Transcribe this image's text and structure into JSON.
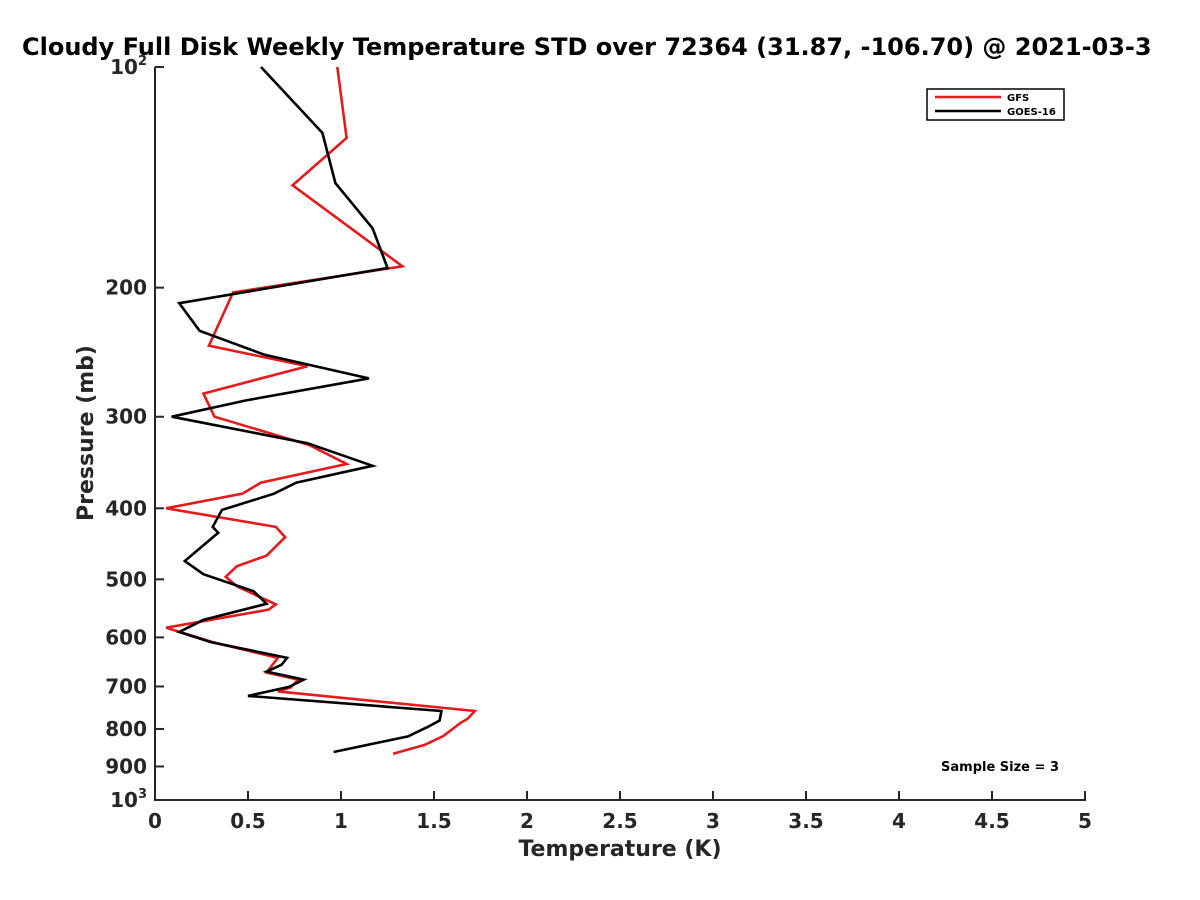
{
  "chart_data": {
    "type": "line",
    "title": "Cloudy Full Disk Weekly Temperature STD over 72364 (31.87, -106.70) @ 2021-03-3",
    "xlabel": "Temperature (K)",
    "ylabel": "Pressure (mb)",
    "xlim": [
      0,
      5
    ],
    "ylim": [
      100,
      1000
    ],
    "y_scale": "log",
    "y_reversed": true,
    "x_ticks": [
      0,
      0.5,
      1,
      1.5,
      2,
      2.5,
      3,
      3.5,
      4,
      4.5,
      5
    ],
    "x_tick_labels": [
      "0",
      "0.5",
      "1",
      "1.5",
      "2",
      "2.5",
      "3",
      "3.5",
      "4",
      "4.5",
      "5"
    ],
    "y_ticks": [
      {
        "value": 100,
        "base": "10",
        "exp": "2",
        "label": ""
      },
      {
        "value": 200,
        "label": "200"
      },
      {
        "value": 300,
        "label": "300"
      },
      {
        "value": 400,
        "label": "400"
      },
      {
        "value": 500,
        "label": "500"
      },
      {
        "value": 600,
        "label": "600"
      },
      {
        "value": 700,
        "label": "700"
      },
      {
        "value": 800,
        "label": "800"
      },
      {
        "value": 900,
        "label": "900"
      },
      {
        "value": 1000,
        "base": "10",
        "exp": "3",
        "label": ""
      }
    ],
    "grid": false,
    "legend_position": "top-right",
    "series": [
      {
        "name": "GFS",
        "color": "#e41a1c",
        "points": [
          [
            0.98,
            100
          ],
          [
            1.03,
            125
          ],
          [
            0.74,
            145
          ],
          [
            1.33,
            187
          ],
          [
            0.42,
            203
          ],
          [
            0.29,
            240
          ],
          [
            0.82,
            256
          ],
          [
            0.26,
            279
          ],
          [
            0.32,
            300
          ],
          [
            0.83,
            328
          ],
          [
            1.03,
            348
          ],
          [
            0.57,
            369
          ],
          [
            0.47,
            382
          ],
          [
            0.06,
            400
          ],
          [
            0.65,
            424
          ],
          [
            0.7,
            438
          ],
          [
            0.6,
            464
          ],
          [
            0.44,
            480
          ],
          [
            0.38,
            496
          ],
          [
            0.44,
            511
          ],
          [
            0.65,
            541
          ],
          [
            0.61,
            550
          ],
          [
            0.06,
            582
          ],
          [
            0.31,
            609
          ],
          [
            0.66,
            640
          ],
          [
            0.6,
            670
          ],
          [
            0.77,
            685
          ],
          [
            0.73,
            702
          ],
          [
            0.66,
            711
          ],
          [
            1.72,
            756
          ],
          [
            1.68,
            775
          ],
          [
            1.64,
            786
          ],
          [
            1.55,
            818
          ],
          [
            1.45,
            841
          ],
          [
            1.28,
            865
          ]
        ]
      },
      {
        "name": "GOES-16",
        "color": "#000000",
        "points": [
          [
            0.57,
            100
          ],
          [
            0.9,
            123
          ],
          [
            0.97,
            144
          ],
          [
            1.17,
            166
          ],
          [
            1.25,
            188
          ],
          [
            0.13,
            210
          ],
          [
            0.24,
            229
          ],
          [
            0.59,
            247
          ],
          [
            1.15,
            266
          ],
          [
            0.49,
            285
          ],
          [
            0.09,
            300
          ],
          [
            0.82,
            326
          ],
          [
            1.17,
            350
          ],
          [
            0.76,
            369
          ],
          [
            0.64,
            382
          ],
          [
            0.36,
            402
          ],
          [
            0.31,
            424
          ],
          [
            0.34,
            432
          ],
          [
            0.16,
            472
          ],
          [
            0.26,
            492
          ],
          [
            0.53,
            519
          ],
          [
            0.6,
            540
          ],
          [
            0.26,
            568
          ],
          [
            0.13,
            590
          ],
          [
            0.3,
            609
          ],
          [
            0.71,
            640
          ],
          [
            0.68,
            654
          ],
          [
            0.6,
            668
          ],
          [
            0.8,
            685
          ],
          [
            0.72,
            701
          ],
          [
            0.5,
            721
          ],
          [
            1.54,
            756
          ],
          [
            1.53,
            779
          ],
          [
            1.47,
            794
          ],
          [
            1.36,
            819
          ],
          [
            0.96,
            860
          ]
        ]
      }
    ],
    "annotations": [
      {
        "text": "Sample Size = 3"
      }
    ]
  }
}
